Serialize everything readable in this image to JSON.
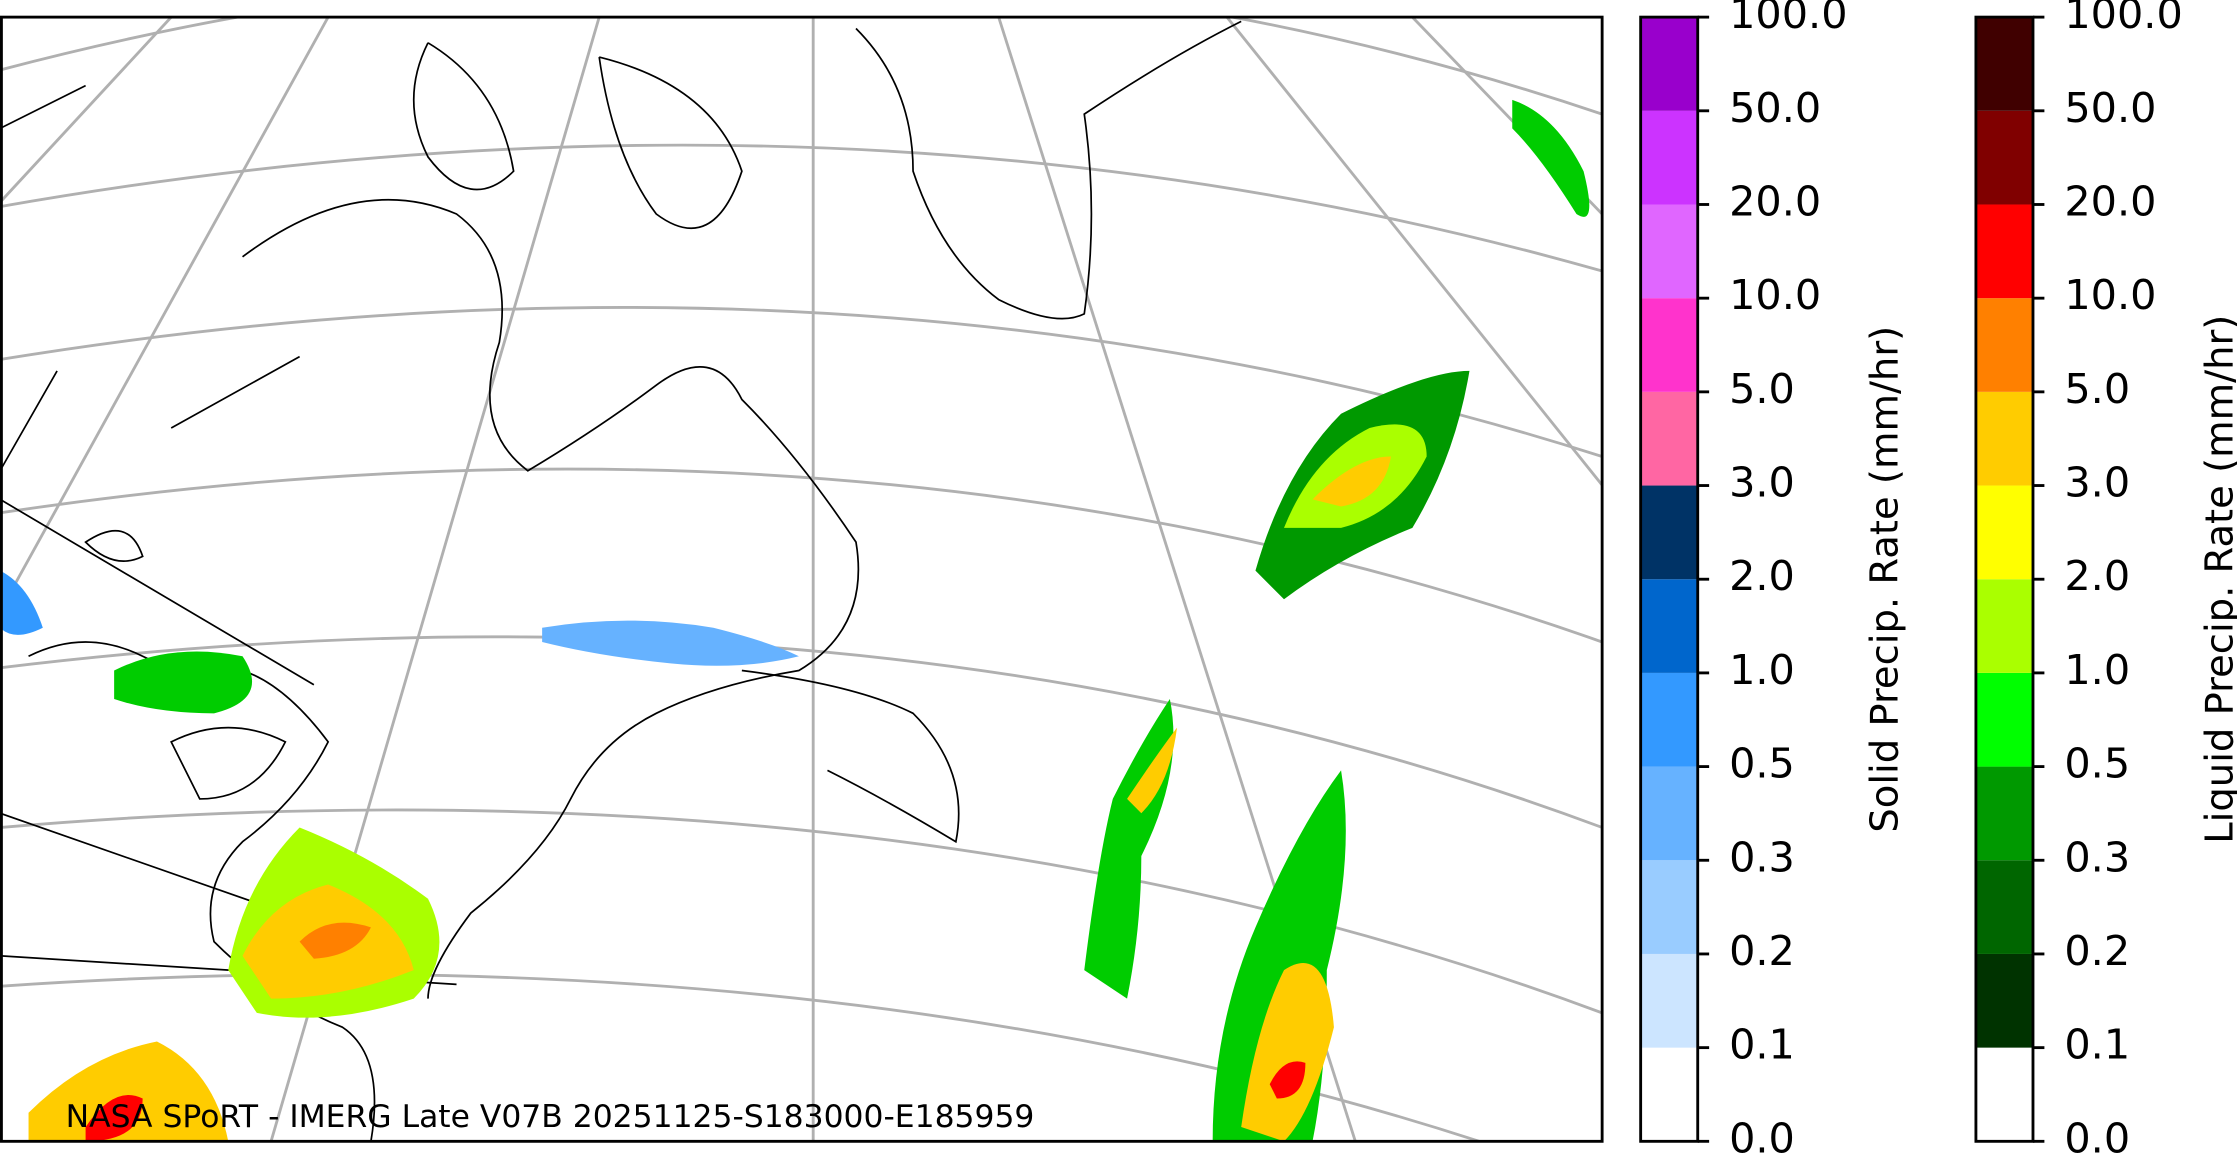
{
  "caption": "NASA SPoRT - IMERG Late V07B 20251125-S183000-E185959",
  "colorbars": [
    {
      "label": "Solid Precip. Rate (mm/hr)",
      "colors": [
        "#ffffff",
        "#cce5ff",
        "#99ccff",
        "#66b2ff",
        "#3399ff",
        "#0066cc",
        "#003366",
        "#ff66a3",
        "#ff33cc",
        "#e066ff",
        "#cc33ff",
        "#9900cc"
      ],
      "ticks": [
        {
          "value": 0,
          "label": "0.0"
        },
        {
          "value": 0.1,
          "label": "0.1"
        },
        {
          "value": 0.2,
          "label": "0.2"
        },
        {
          "value": 0.3,
          "label": "0.3"
        },
        {
          "value": 0.5,
          "label": "0.5"
        },
        {
          "value": 1,
          "label": "1.0"
        },
        {
          "value": 2,
          "label": "2.0"
        },
        {
          "value": 3,
          "label": "3.0"
        },
        {
          "value": 5,
          "label": "5.0"
        },
        {
          "value": 10,
          "label": "10.0"
        },
        {
          "value": 20,
          "label": "20.0"
        },
        {
          "value": 50,
          "label": "50.0"
        },
        {
          "value": 100,
          "label": "100.0"
        }
      ]
    },
    {
      "label": "Liquid Precip. Rate (mm/hr)",
      "colors": [
        "#ffffff",
        "#003300",
        "#006600",
        "#009900",
        "#00ff00",
        "#aaff00",
        "#ffff00",
        "#ffcc00",
        "#ff8000",
        "#ff0000",
        "#800000",
        "#400000"
      ],
      "ticks": [
        {
          "value": 0,
          "label": "0.0"
        },
        {
          "value": 0.1,
          "label": "0.1"
        },
        {
          "value": 0.2,
          "label": "0.2"
        },
        {
          "value": 0.3,
          "label": "0.3"
        },
        {
          "value": 0.5,
          "label": "0.5"
        },
        {
          "value": 1,
          "label": "1.0"
        },
        {
          "value": 2,
          "label": "2.0"
        },
        {
          "value": 3,
          "label": "3.0"
        },
        {
          "value": 5,
          "label": "5.0"
        },
        {
          "value": 10,
          "label": "10.0"
        },
        {
          "value": 20,
          "label": "20.0"
        },
        {
          "value": 50,
          "label": "50.0"
        },
        {
          "value": 100,
          "label": "100.0"
        }
      ]
    }
  ]
}
